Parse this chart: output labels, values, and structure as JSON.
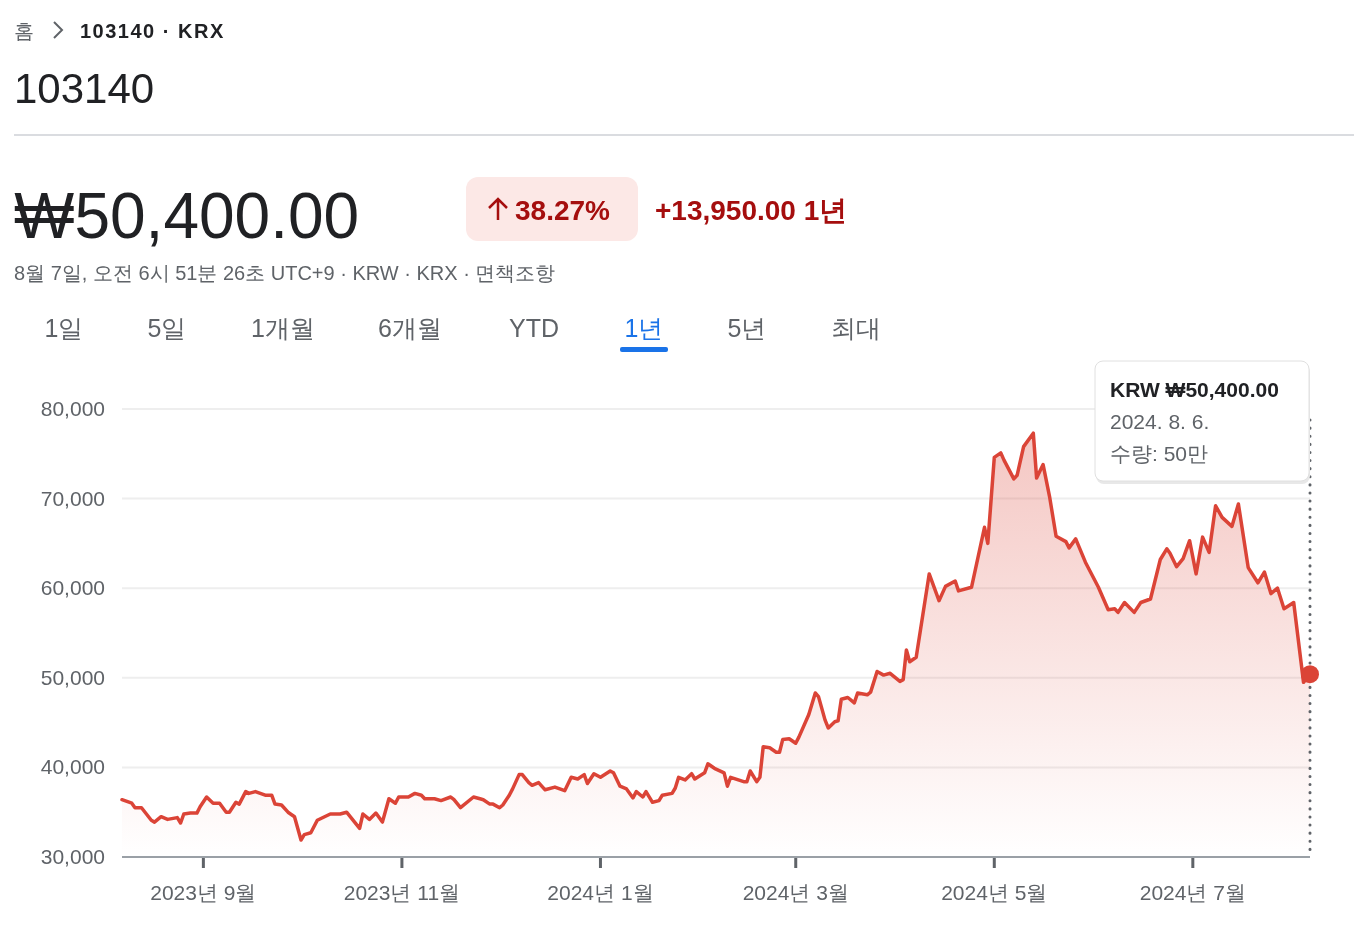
{
  "chart_data": {
    "type": "area",
    "title": "103140",
    "annotations": [
      "홈",
      "103140 · KRX",
      "₩50,400.00",
      "38.27%",
      "+13,950.00 1년",
      "8월 7일, 오전 6시 51분 26초 UTC+9 · KRW · KRX · 면책조항",
      "1일",
      "5일",
      "1개월",
      "6개월",
      "YTD",
      "1년",
      "5년",
      "최대",
      "KRW ₩50,400.00",
      "2024. 8. 6.",
      "수량: 50만"
    ],
    "x": [
      "2023-08-07",
      "2023-08-10",
      "2023-08-11",
      "2023-08-13",
      "2023-08-16",
      "2023-08-17",
      "2023-08-19",
      "2023-08-21",
      "2023-08-24",
      "2023-08-25",
      "2023-08-26",
      "2023-08-28",
      "2023-08-30",
      "2023-08-31",
      "2023-09-02",
      "2023-09-04",
      "2023-09-06",
      "2023-09-08",
      "2023-09-09",
      "2023-09-11",
      "2023-09-12",
      "2023-09-14",
      "2023-09-15",
      "2023-09-17",
      "2023-09-20",
      "2023-09-22",
      "2023-09-23",
      "2023-09-25",
      "2023-09-27",
      "2023-09-29",
      "2023-10-01",
      "2023-10-02",
      "2023-10-04",
      "2023-10-06",
      "2023-10-10",
      "2023-10-13",
      "2023-10-15",
      "2023-10-19",
      "2023-10-20",
      "2023-10-22",
      "2023-10-24",
      "2023-10-26",
      "2023-10-28",
      "2023-10-30",
      "2023-10-31",
      "2023-11-03",
      "2023-11-05",
      "2023-11-07",
      "2023-11-08",
      "2023-11-11",
      "2023-11-13",
      "2023-11-16",
      "2023-11-17",
      "2023-11-19",
      "2023-11-23",
      "2023-11-25",
      "2023-11-26",
      "2023-11-28",
      "2023-11-29",
      "2023-12-01",
      "2023-12-02",
      "2023-12-04",
      "2023-12-05",
      "2023-12-07",
      "2023-12-08",
      "2023-12-10",
      "2023-12-11",
      "2023-12-13",
      "2023-12-15",
      "2023-12-18",
      "2023-12-21",
      "2023-12-23",
      "2023-12-25",
      "2023-12-27",
      "2023-12-28",
      "2023-12-30",
      "2024-01-01",
      "2024-01-04",
      "2024-01-05",
      "2024-01-07",
      "2024-01-09",
      "2024-01-11",
      "2024-01-12",
      "2024-01-14",
      "2024-01-15",
      "2024-01-17",
      "2024-01-19",
      "2024-01-20",
      "2024-01-23",
      "2024-01-24",
      "2024-01-25",
      "2024-01-27",
      "2024-01-29",
      "2024-01-30",
      "2024-02-02",
      "2024-02-03",
      "2024-02-05",
      "2024-02-08",
      "2024-02-09",
      "2024-02-10",
      "2024-02-14",
      "2024-02-15",
      "2024-02-16",
      "2024-02-18",
      "2024-02-19",
      "2024-02-20",
      "2024-02-22",
      "2024-02-24",
      "2024-02-25",
      "2024-02-26",
      "2024-02-28",
      "2024-03-01",
      "2024-03-02",
      "2024-03-05",
      "2024-03-07",
      "2024-03-08",
      "2024-03-10",
      "2024-03-11",
      "2024-03-13",
      "2024-03-14",
      "2024-03-15",
      "2024-03-17",
      "2024-03-19",
      "2024-03-20",
      "2024-03-23",
      "2024-03-24",
      "2024-03-26",
      "2024-03-28",
      "2024-03-30",
      "2024-04-02",
      "2024-04-03",
      "2024-04-04",
      "2024-04-05",
      "2024-04-07",
      "2024-04-11",
      "2024-04-14",
      "2024-04-16",
      "2024-04-19",
      "2024-04-20",
      "2024-04-24",
      "2024-04-28",
      "2024-04-29",
      "2024-05-01",
      "2024-05-03",
      "2024-05-04",
      "2024-05-07",
      "2024-05-08",
      "2024-05-10",
      "2024-05-13",
      "2024-05-14",
      "2024-05-16",
      "2024-05-18",
      "2024-05-20",
      "2024-05-23",
      "2024-05-24",
      "2024-05-26",
      "2024-05-29",
      "2024-06-02",
      "2024-06-05",
      "2024-06-07",
      "2024-06-08",
      "2024-06-10",
      "2024-06-13",
      "2024-06-15",
      "2024-06-18",
      "2024-06-21",
      "2024-06-23",
      "2024-06-24",
      "2024-06-26",
      "2024-06-28",
      "2024-06-30",
      "2024-07-02",
      "2024-07-04",
      "2024-07-06",
      "2024-07-08",
      "2024-07-10",
      "2024-07-13",
      "2024-07-15",
      "2024-07-18",
      "2024-07-21",
      "2024-07-23",
      "2024-07-25",
      "2024-07-27",
      "2024-07-29",
      "2024-08-01",
      "2024-08-04",
      "2024-08-06"
    ],
    "values": [
      36400,
      36000,
      35500,
      35500,
      34100,
      33900,
      34500,
      34200,
      34400,
      33800,
      34800,
      34900,
      34900,
      35600,
      36700,
      36000,
      36000,
      35000,
      35000,
      36100,
      35900,
      37300,
      37100,
      37300,
      36900,
      36900,
      35900,
      35800,
      35000,
      34500,
      31900,
      32500,
      32700,
      34100,
      34800,
      34800,
      35000,
      33200,
      34800,
      34200,
      34900,
      33900,
      36500,
      36000,
      36700,
      36700,
      37100,
      36900,
      36500,
      36500,
      36300,
      36700,
      36400,
      35500,
      36700,
      36500,
      36400,
      35900,
      35900,
      35500,
      35800,
      36900,
      37600,
      39200,
      39200,
      38300,
      38000,
      38300,
      37500,
      37800,
      37400,
      38900,
      38700,
      39200,
      38200,
      39300,
      38900,
      39600,
      39400,
      37900,
      37600,
      36600,
      37300,
      36700,
      37300,
      36100,
      36300,
      36900,
      37100,
      37700,
      38900,
      38600,
      39300,
      38700,
      39400,
      40400,
      39900,
      39400,
      37900,
      38900,
      38400,
      38400,
      39600,
      38400,
      38900,
      42300,
      42200,
      41700,
      41700,
      43100,
      43200,
      42700,
      43400,
      45900,
      48300,
      47900,
      45300,
      44400,
      45100,
      45200,
      47600,
      47800,
      47200,
      48300,
      48100,
      48400,
      50700,
      50300,
      50500,
      49600,
      49800,
      53100,
      51800,
      52300,
      61600,
      58600,
      60200,
      60800,
      59700,
      60100,
      66800,
      65000,
      74600,
      75100,
      74300,
      72200,
      72600,
      75800,
      77300,
      72300,
      73800,
      70200,
      65800,
      65200,
      64500,
      65500,
      62900,
      60100,
      57600,
      57700,
      57300,
      58400,
      57300,
      58400,
      58800,
      63200,
      64400,
      63900,
      62400,
      63300,
      65300,
      61600,
      65700,
      64000,
      69200,
      67900,
      66900,
      69400,
      62300,
      60600,
      61800,
      59400,
      60000,
      57700,
      58400,
      49500,
      50400
    ],
    "color": "#db4437",
    "xlim": [
      "2023-08-07",
      "2024-08-06"
    ],
    "xticks": [
      {
        "value": "2023-09-01",
        "label": "2023년 9월"
      },
      {
        "value": "2023-11-01",
        "label": "2023년 11월"
      },
      {
        "value": "2024-01-01",
        "label": "2024년 1월"
      },
      {
        "value": "2024-03-01",
        "label": "2024년 3월"
      },
      {
        "value": "2024-05-01",
        "label": "2024년 5월"
      },
      {
        "value": "2024-07-01",
        "label": "2024년 7월"
      }
    ],
    "ylim": [
      30000,
      80000
    ],
    "yticks": [
      {
        "value": 30000,
        "label": "30,000"
      },
      {
        "value": 40000,
        "label": "40,000"
      },
      {
        "value": 50000,
        "label": "50,000"
      },
      {
        "value": 60000,
        "label": "60,000"
      },
      {
        "value": 70000,
        "label": "70,000"
      },
      {
        "value": 80000,
        "label": "80,000"
      }
    ],
    "grid": "y",
    "ref_lines": [
      {
        "axis": "x",
        "value": "2024-08-06",
        "color": "#5f6368",
        "line_style": "dotted"
      }
    ]
  }
}
